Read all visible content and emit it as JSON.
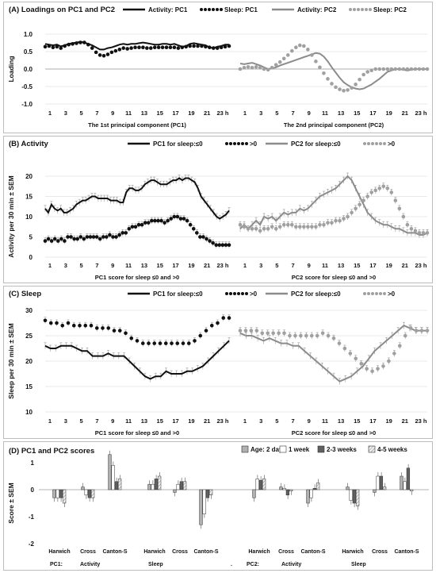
{
  "chart_data": [
    {
      "panel": "A",
      "type": "line",
      "title": "(A)  Loadings on PC1 and PC2",
      "ylabel": "Loading",
      "ylim": [
        -1.0,
        1.0
      ],
      "yticks": [
        "1.0",
        "0.5",
        "0.0",
        "-0.5",
        "-1.0"
      ],
      "xticks": [
        "1",
        "3",
        "5",
        "7",
        "9",
        "11",
        "13",
        "15",
        "17",
        "19",
        "21",
        "23 h"
      ],
      "legend": [
        "Activity: PC1",
        "Sleep: PC1",
        "Activity: PC2",
        "Sleep: PC2"
      ],
      "subplots": [
        {
          "xlabel": "The 1st principal component (PC1)",
          "series": [
            {
              "name": "Activity: PC1",
              "style": "solid-black",
              "values": [
                0.72,
                0.7,
                0.68,
                0.7,
                0.65,
                0.68,
                0.72,
                0.74,
                0.76,
                0.78,
                0.76,
                0.72,
                0.68,
                0.62,
                0.56,
                0.56,
                0.6,
                0.62,
                0.66,
                0.7,
                0.72,
                0.7,
                0.72,
                0.72,
                0.74,
                0.76,
                0.74,
                0.72,
                0.7,
                0.7,
                0.72,
                0.72,
                0.7,
                0.72,
                0.68,
                0.64,
                0.66,
                0.72,
                0.74,
                0.72,
                0.7,
                0.68,
                0.62,
                0.6,
                0.64,
                0.66,
                0.7,
                0.7
              ]
            },
            {
              "name": "Sleep: PC1",
              "style": "dotted-black",
              "values": [
                0.64,
                0.66,
                0.62,
                0.64,
                0.6,
                0.66,
                0.7,
                0.72,
                0.74,
                0.76,
                0.76,
                0.7,
                0.6,
                0.48,
                0.4,
                0.38,
                0.42,
                0.48,
                0.52,
                0.56,
                0.6,
                0.58,
                0.6,
                0.62,
                0.62,
                0.62,
                0.6,
                0.6,
                0.62,
                0.62,
                0.62,
                0.62,
                0.62,
                0.62,
                0.6,
                0.62,
                0.64,
                0.66,
                0.66,
                0.66,
                0.66,
                0.64,
                0.62,
                0.6,
                0.6,
                0.62,
                0.64,
                0.66
              ]
            }
          ]
        },
        {
          "xlabel": "The 2nd principal component (PC2)",
          "series": [
            {
              "name": "Activity: PC2",
              "style": "solid-gray",
              "values": [
                0.16,
                0.14,
                0.16,
                0.18,
                0.14,
                0.1,
                0.05,
                0.0,
                0.02,
                0.05,
                0.1,
                0.14,
                0.18,
                0.22,
                0.26,
                0.3,
                0.34,
                0.38,
                0.42,
                0.46,
                0.44,
                0.36,
                0.22,
                0.05,
                -0.1,
                -0.25,
                -0.38,
                -0.46,
                -0.52,
                -0.56,
                -0.58,
                -0.56,
                -0.5,
                -0.44,
                -0.36,
                -0.28,
                -0.18,
                -0.08,
                -0.04,
                0.0,
                0.0,
                -0.02,
                -0.04,
                -0.02,
                0.0,
                0.0,
                0.0,
                0.0
              ]
            },
            {
              "name": "Sleep: PC2",
              "style": "dotted-gray",
              "values": [
                0.0,
                0.04,
                0.06,
                0.04,
                0.06,
                0.04,
                0.0,
                -0.02,
                0.04,
                0.12,
                0.2,
                0.3,
                0.4,
                0.52,
                0.62,
                0.68,
                0.66,
                0.56,
                0.4,
                0.22,
                0.05,
                -0.12,
                -0.28,
                -0.42,
                -0.52,
                -0.58,
                -0.62,
                -0.6,
                -0.54,
                -0.44,
                -0.3,
                -0.16,
                -0.08,
                -0.04,
                0.0,
                0.0,
                0.0,
                0.0,
                0.0,
                0.0,
                0.0,
                0.0,
                0.0,
                0.0,
                0.0,
                0.0,
                0.0,
                0.0
              ]
            }
          ]
        }
      ]
    },
    {
      "panel": "B",
      "type": "line",
      "title": "(B)  Activity",
      "ylabel": "Activity per 30 min ± SEM",
      "ylim": [
        0,
        20
      ],
      "yticks": [
        "20",
        "15",
        "10",
        "5",
        "0"
      ],
      "xticks": [
        "1",
        "3",
        "5",
        "7",
        "9",
        "11",
        "13",
        "15",
        "17",
        "19",
        "21",
        "23 h"
      ],
      "legend": [
        "PC1 for sleep:≤0",
        ">0",
        "PC2 for sleep:≤0",
        ">0"
      ],
      "subplots": [
        {
          "xlabel": "PC1 score for sleep ≤0 and >0",
          "series": [
            {
              "name": "PC1 for sleep:≤0",
              "style": "solid-black",
              "values": [
                12,
                11,
                13,
                12,
                11.5,
                12,
                11,
                11,
                11.5,
                12,
                13,
                13.5,
                14,
                14,
                14.5,
                15,
                15,
                14.5,
                14.5,
                14.5,
                14.5,
                14,
                14,
                14,
                13.5,
                13.5,
                16,
                17,
                17,
                16.5,
                16.5,
                17,
                18,
                18.5,
                19,
                19,
                18.5,
                18,
                18,
                18,
                18.5,
                19,
                19,
                19.5,
                19,
                19.5,
                19.5,
                19,
                18.5,
                17,
                15,
                14,
                13,
                12,
                11,
                10,
                9.5,
                10,
                10.5,
                11.5
              ]
            },
            {
              "name": ">0",
              "style": "dotted-black",
              "values": [
                4,
                4.5,
                4,
                4.5,
                4,
                4.5,
                4,
                5,
                5,
                4.5,
                4.5,
                5,
                4.5,
                5,
                5,
                5,
                5,
                4.5,
                5,
                5,
                5.5,
                5,
                5,
                5.5,
                6,
                6,
                7,
                7.5,
                7.5,
                8,
                8,
                8.5,
                8.5,
                9,
                9,
                9,
                9,
                8.5,
                9,
                9.5,
                10,
                10,
                9.5,
                9.5,
                9,
                8,
                7,
                6,
                5,
                5,
                4.5,
                4,
                3.5,
                3,
                3,
                3,
                3,
                3
              ]
            }
          ]
        },
        {
          "xlabel": "PC2 score for sleep ≤0 and >0",
          "series": [
            {
              "name": "PC2 for sleep:≤0",
              "style": "solid-gray",
              "values": [
                7,
                8,
                7,
                8,
                9,
                8,
                10,
                9.5,
                10,
                9,
                10,
                11,
                10.5,
                11,
                11,
                12,
                11.5,
                12,
                13,
                14,
                15,
                15.5,
                16,
                16.5,
                17,
                18,
                19,
                20,
                19,
                17,
                15,
                13,
                11,
                10,
                9,
                8.5,
                8,
                8,
                7.5,
                7,
                7,
                6.5,
                6,
                6,
                6,
                5.5,
                5.5,
                6
              ]
            },
            {
              "name": ">0",
              "style": "dotted-gray",
              "values": [
                8,
                7.5,
                7,
                7,
                7,
                6.5,
                7,
                7,
                7.5,
                7,
                7.5,
                8,
                8,
                8,
                7.5,
                7.5,
                7.5,
                7.5,
                7.5,
                7.5,
                8,
                8,
                8.5,
                8.5,
                9,
                9,
                9.5,
                10,
                11,
                12,
                13,
                14,
                15,
                16,
                16.5,
                17,
                17.5,
                17,
                16,
                14,
                12,
                10,
                8,
                7,
                6.5,
                6,
                6,
                6
              ]
            }
          ]
        }
      ]
    },
    {
      "panel": "C",
      "type": "line",
      "title": "(C)  Sleep",
      "ylabel": "Sleep per 30 min ± SEM",
      "ylim": [
        10,
        30
      ],
      "yticks": [
        "30",
        "25",
        "20",
        "15",
        "10"
      ],
      "xticks": [
        "1",
        "3",
        "5",
        "7",
        "9",
        "11",
        "13",
        "15",
        "17",
        "19",
        "21",
        "23 h"
      ],
      "legend": [
        "PC1 for sleep:≤0",
        ">0",
        "PC2 for sleep:≤0",
        ">0"
      ],
      "subplots": [
        {
          "xlabel": "PC1 score for sleep ≤0 and >0",
          "series": [
            {
              "name": "PC1 for sleep:≤0",
              "style": "solid-black",
              "values": [
                23,
                22.5,
                22.5,
                23,
                23,
                23,
                22.5,
                22,
                22,
                21,
                21,
                21,
                21.5,
                21,
                21,
                21,
                20,
                19,
                18,
                17,
                16.5,
                17,
                17,
                18,
                17.5,
                17.5,
                17.5,
                18,
                18,
                18.5,
                19,
                20,
                21,
                22,
                23,
                24
              ]
            },
            {
              "name": ">0",
              "style": "dotted-black",
              "values": [
                28,
                27.5,
                27.5,
                27,
                27.5,
                27,
                27,
                27,
                27,
                26.5,
                26.5,
                26.5,
                26,
                26,
                25.5,
                24.5,
                24,
                23.5,
                23.5,
                23.5,
                23.5,
                23.5,
                23.5,
                23.5,
                23.5,
                23.5,
                24,
                25,
                26,
                27,
                27.5,
                28.5,
                28.5
              ]
            }
          ]
        },
        {
          "xlabel": "PC2 score for sleep ≤0 and >0",
          "series": [
            {
              "name": "PC2 for sleep:≤0",
              "style": "solid-gray",
              "values": [
                25.5,
                25,
                25,
                24.5,
                24,
                24.5,
                24,
                23.5,
                23.5,
                23,
                23,
                22,
                21,
                20,
                19,
                18,
                17,
                16,
                16.5,
                17,
                18,
                19,
                20.5,
                22,
                23,
                24,
                25,
                26,
                27,
                26.5,
                26,
                26,
                26
              ]
            },
            {
              "name": ">0",
              "style": "dotted-gray",
              "values": [
                26,
                26,
                26,
                26,
                25.5,
                25.5,
                25.5,
                25.5,
                25.5,
                25,
                25,
                25,
                25,
                25,
                25,
                25.5,
                25,
                24.5,
                23.5,
                22.5,
                21.5,
                20.5,
                19.5,
                18.5,
                18,
                18.5,
                19,
                20,
                21.5,
                23,
                25,
                26.5,
                26,
                26,
                26
              ]
            }
          ]
        }
      ]
    },
    {
      "panel": "D",
      "type": "bar",
      "title": "(D)    PC1 and PC2 scores",
      "ylabel": "Score ± SEM",
      "ylim": [
        -2,
        1
      ],
      "yticks": [
        "1",
        "0",
        "-1",
        "-2"
      ],
      "legend": [
        "Age: 2 days",
        "1 week",
        "2-3 weeks",
        "4-5 weeks"
      ],
      "group_labels": [
        "Harwich",
        "Cross",
        "Canton-S",
        "Harwich",
        "Cross",
        "Canton-S",
        "Harwich",
        "Cross",
        "Canton-S",
        "Harwich",
        "Cross",
        "Canton-S"
      ],
      "lower_labels": [
        "PC1:",
        "Activity",
        "Sleep",
        ".",
        "PC2:",
        "Activity",
        "Sleep"
      ],
      "series": [
        {
          "name": "Age: 2 days",
          "values": [
            -0.3,
            0.1,
            1.3,
            0.2,
            -0.1,
            -1.3,
            -0.3,
            0.1,
            -0.5,
            0.1,
            -0.1,
            0.5
          ]
        },
        {
          "name": "1 week",
          "values": [
            -0.3,
            -0.2,
            0.9,
            0.2,
            0.2,
            -0.9,
            0.4,
            0.05,
            -0.3,
            -0.4,
            0.5,
            0.3
          ]
        },
        {
          "name": "2-3 weeks",
          "values": [
            -0.3,
            -0.3,
            0.3,
            0.4,
            0.3,
            -0.3,
            0.35,
            -0.2,
            0.05,
            -0.5,
            0.5,
            0.8
          ]
        },
        {
          "name": "4-5 weeks",
          "values": [
            -0.5,
            -0.3,
            0.4,
            0.5,
            0.3,
            -0.2,
            0.4,
            -0.05,
            0.25,
            -0.6,
            0.1,
            -0.05
          ]
        }
      ]
    }
  ]
}
